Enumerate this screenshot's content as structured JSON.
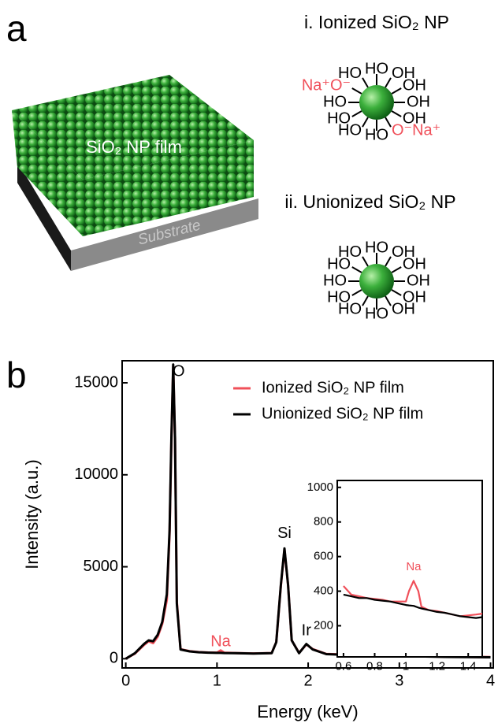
{
  "panel_a": {
    "label": "a",
    "film_label": "SiO₂ NP film",
    "substrate_label": "Substrate",
    "ionized": {
      "title": "i. Ionized SiO₂ NP",
      "groups": [
        {
          "text": "OH",
          "color": "#000000"
        },
        {
          "text": "OH",
          "color": "#000000"
        },
        {
          "text": "O⁻Na⁺",
          "color": "#f0505a"
        },
        {
          "text": "HO",
          "color": "#000000"
        },
        {
          "text": "HO",
          "color": "#000000"
        },
        {
          "text": "HO",
          "color": "#000000"
        },
        {
          "text": "HO",
          "color": "#000000"
        },
        {
          "text": "Na⁺O⁻",
          "color": "#f0505a"
        },
        {
          "text": "HO",
          "color": "#000000"
        },
        {
          "text": "HO",
          "color": "#000000"
        },
        {
          "text": "OH",
          "color": "#000000"
        },
        {
          "text": "OH",
          "color": "#000000"
        }
      ]
    },
    "unionized": {
      "title": "ii. Unionized SiO₂ NP",
      "groups": [
        {
          "text": "OH",
          "color": "#000000"
        },
        {
          "text": "OH",
          "color": "#000000"
        },
        {
          "text": "OH",
          "color": "#000000"
        },
        {
          "text": "HO",
          "color": "#000000"
        },
        {
          "text": "HO",
          "color": "#000000"
        },
        {
          "text": "HO",
          "color": "#000000"
        },
        {
          "text": "HO",
          "color": "#000000"
        },
        {
          "text": "HO",
          "color": "#000000"
        },
        {
          "text": "HO",
          "color": "#000000"
        },
        {
          "text": "HO",
          "color": "#000000"
        },
        {
          "text": "OH",
          "color": "#000000"
        },
        {
          "text": "OH",
          "color": "#000000"
        }
      ]
    }
  },
  "panel_b_label": "b",
  "chart_data": [
    {
      "type": "line",
      "x_label": "Energy (keV)",
      "y_label": "Intensity (a.u.)",
      "xlim": [
        -0.04,
        4.03
      ],
      "ylim": [
        -500,
        16200
      ],
      "xticks": [
        0,
        1,
        2,
        3,
        4
      ],
      "yticks": [
        0,
        5000,
        10000,
        15000
      ],
      "legend": "upper right",
      "x": [
        0,
        0.1,
        0.2,
        0.25,
        0.3,
        0.35,
        0.4,
        0.45,
        0.48,
        0.5,
        0.52,
        0.54,
        0.56,
        0.6,
        0.7,
        0.8,
        0.9,
        1.0,
        1.04,
        1.08,
        1.2,
        1.4,
        1.6,
        1.65,
        1.7,
        1.74,
        1.78,
        1.82,
        1.9,
        1.98,
        2.05,
        2.2,
        2.5,
        3.0,
        3.5,
        4.0
      ],
      "series": [
        {
          "name": "Ionized SiO₂ NP film",
          "color": "#f0505a",
          "values": [
            0,
            280,
            750,
            950,
            850,
            1200,
            1900,
            3200,
            6800,
            11800,
            15900,
            12000,
            3100,
            520,
            410,
            360,
            340,
            330,
            450,
            330,
            310,
            290,
            310,
            900,
            3950,
            5950,
            4000,
            1000,
            320,
            780,
            520,
            260,
            210,
            160,
            110,
            90
          ]
        },
        {
          "name": "Unionized SiO₂ NP film",
          "color": "#000000",
          "values": [
            0,
            300,
            800,
            1000,
            950,
            1300,
            2000,
            3500,
            7000,
            12000,
            16000,
            12000,
            3000,
            500,
            400,
            350,
            330,
            320,
            320,
            310,
            300,
            280,
            300,
            900,
            4000,
            6000,
            4000,
            1000,
            300,
            800,
            500,
            250,
            200,
            150,
            100,
            80
          ]
        }
      ],
      "annotations": [
        {
          "text": "O",
          "x": 0.58,
          "y": 15600,
          "color": "#000000"
        },
        {
          "text": "Na",
          "x": 1.04,
          "y": 900,
          "color": "#f0505a"
        },
        {
          "text": "Si",
          "x": 1.74,
          "y": 6800,
          "color": "#000000"
        },
        {
          "text": "Ir",
          "x": 1.98,
          "y": 1500,
          "color": "#000000"
        }
      ]
    },
    {
      "type": "line",
      "xlim": [
        0.56,
        1.49
      ],
      "ylim": [
        20,
        1040
      ],
      "xticks": [
        0.6,
        0.8,
        1.0,
        1.2,
        1.4
      ],
      "yticks": [
        200,
        400,
        600,
        800,
        1000
      ],
      "x": [
        0.6,
        0.65,
        0.7,
        0.75,
        0.8,
        0.85,
        0.9,
        0.95,
        1.0,
        1.02,
        1.05,
        1.08,
        1.1,
        1.15,
        1.2,
        1.25,
        1.3,
        1.35,
        1.4,
        1.45,
        1.49
      ],
      "series": [
        {
          "name": "Ionized SiO₂ NP film",
          "color": "#f0505a",
          "values": [
            430,
            380,
            370,
            360,
            355,
            350,
            340,
            340,
            340,
            400,
            460,
            400,
            310,
            290,
            285,
            275,
            265,
            255,
            260,
            265,
            270
          ]
        },
        {
          "name": "Unionized SiO₂ NP film",
          "color": "#000000",
          "values": [
            380,
            370,
            360,
            360,
            350,
            345,
            340,
            330,
            320,
            318,
            315,
            305,
            300,
            290,
            280,
            275,
            265,
            255,
            250,
            245,
            250
          ]
        }
      ],
      "annotations": [
        {
          "text": "Na",
          "x": 1.05,
          "y": 540,
          "color": "#f0505a"
        }
      ]
    }
  ]
}
